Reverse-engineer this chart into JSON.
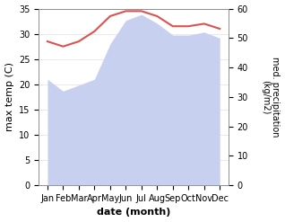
{
  "months": [
    "Jan",
    "Feb",
    "Mar",
    "Apr",
    "May",
    "Jun",
    "Jul",
    "Aug",
    "Sep",
    "Oct",
    "Nov",
    "Dec"
  ],
  "month_indices": [
    0,
    1,
    2,
    3,
    4,
    5,
    6,
    7,
    8,
    9,
    10,
    11
  ],
  "temperature": [
    28.5,
    27.5,
    28.5,
    30.5,
    33.5,
    34.5,
    34.5,
    33.5,
    31.5,
    31.5,
    32.0,
    31.0
  ],
  "precipitation": [
    36,
    32,
    34,
    36,
    48,
    56,
    58,
    55,
    51,
    51,
    52,
    50
  ],
  "temp_color": "#d9534f",
  "precip_fill_color": "#c8d0f0",
  "precip_edge_color": "#b0bce8",
  "ylabel_left": "max temp (C)",
  "ylabel_right": "med. precipitation\n(kg/m2)",
  "xlabel": "date (month)",
  "ylim_left": [
    0,
    35
  ],
  "ylim_right": [
    0,
    60
  ],
  "yticks_left": [
    0,
    5,
    10,
    15,
    20,
    25,
    30,
    35
  ],
  "yticks_right": [
    0,
    10,
    20,
    30,
    40,
    50,
    60
  ],
  "temp_linewidth": 1.5,
  "grid_color": "#e0e0e0"
}
